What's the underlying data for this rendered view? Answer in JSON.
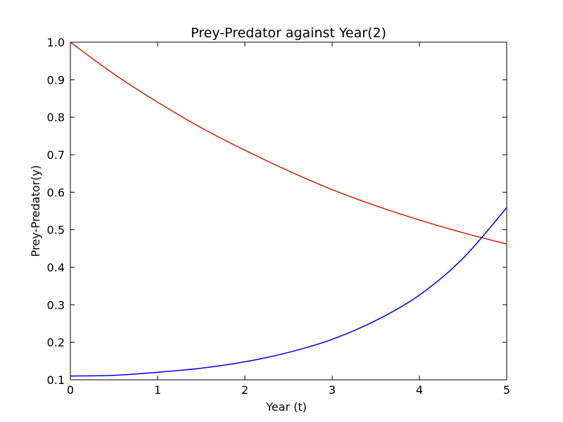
{
  "chart_data": {
    "type": "line",
    "title": "Prey-Predator against Year(2)",
    "xlabel": "Year (t)",
    "ylabel": "Prey-Predator(y)",
    "xlim": [
      0,
      5
    ],
    "ylim": [
      0.1,
      1.0
    ],
    "x_ticks": [
      "0",
      "1",
      "2",
      "3",
      "4",
      "5"
    ],
    "y_ticks": [
      "0.1",
      "0.2",
      "0.3",
      "0.4",
      "0.5",
      "0.6",
      "0.7",
      "0.8",
      "0.9",
      "1.0"
    ],
    "grid": false,
    "legend": "none",
    "x": [
      0,
      0.5,
      1,
      1.5,
      2,
      2.5,
      3,
      3.5,
      4,
      4.5,
      5
    ],
    "series": [
      {
        "color": "#cc2200",
        "values": [
          1.0,
          0.915,
          0.84,
          0.772,
          0.712,
          0.657,
          0.607,
          0.564,
          0.526,
          0.492,
          0.462
        ]
      },
      {
        "color": "#0000ee",
        "values": [
          0.11,
          0.112,
          0.12,
          0.131,
          0.148,
          0.173,
          0.208,
          0.258,
          0.326,
          0.424,
          0.559
        ]
      }
    ]
  }
}
